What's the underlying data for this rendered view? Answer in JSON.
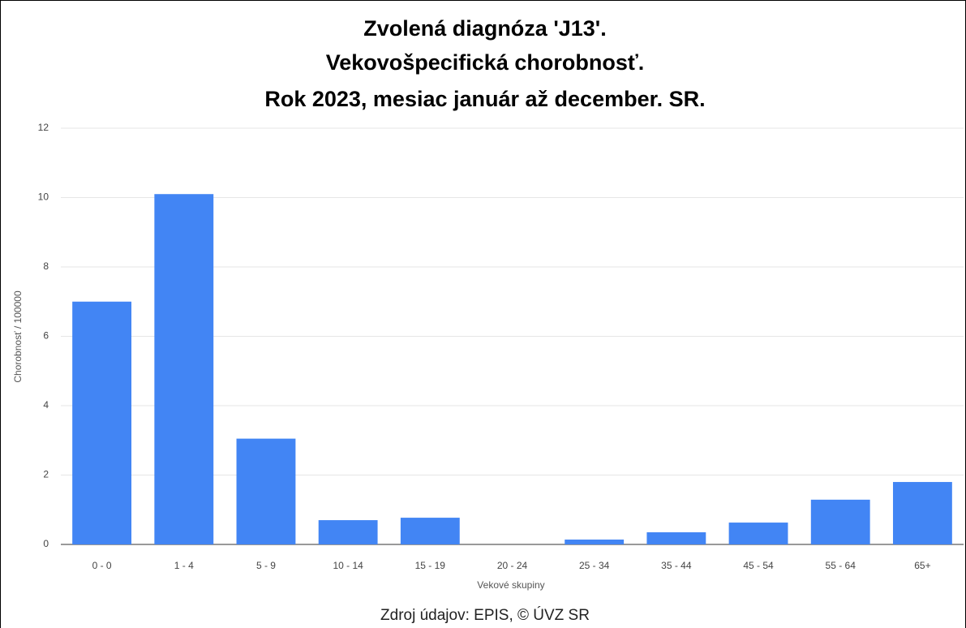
{
  "chart_data": {
    "type": "bar",
    "title": [
      "Zvolená diagnóza 'J13'.",
      "Vekovošpecifická chorobnosť.",
      "Rok 2023, mesiac január až december. SR."
    ],
    "x_label": "Vekové skupiny",
    "y_label": "Chorobnosť / 100000",
    "source": "Zdroj údajov: EPIS, © ÚVZ SR",
    "categories": [
      "0 - 0",
      "1 - 4",
      "5 - 9",
      "10 - 14",
      "15 - 19",
      "20 - 24",
      "25 - 34",
      "35 - 44",
      "45 - 54",
      "55 - 64",
      "65+"
    ],
    "values": [
      7.0,
      10.1,
      3.05,
      0.7,
      0.77,
      0,
      0.14,
      0.35,
      0.63,
      1.29,
      1.8
    ],
    "color": "#4285f4",
    "ylim": [
      0,
      12
    ],
    "yticks": [
      0,
      2,
      4,
      6,
      8,
      10,
      12
    ],
    "grid": true
  }
}
